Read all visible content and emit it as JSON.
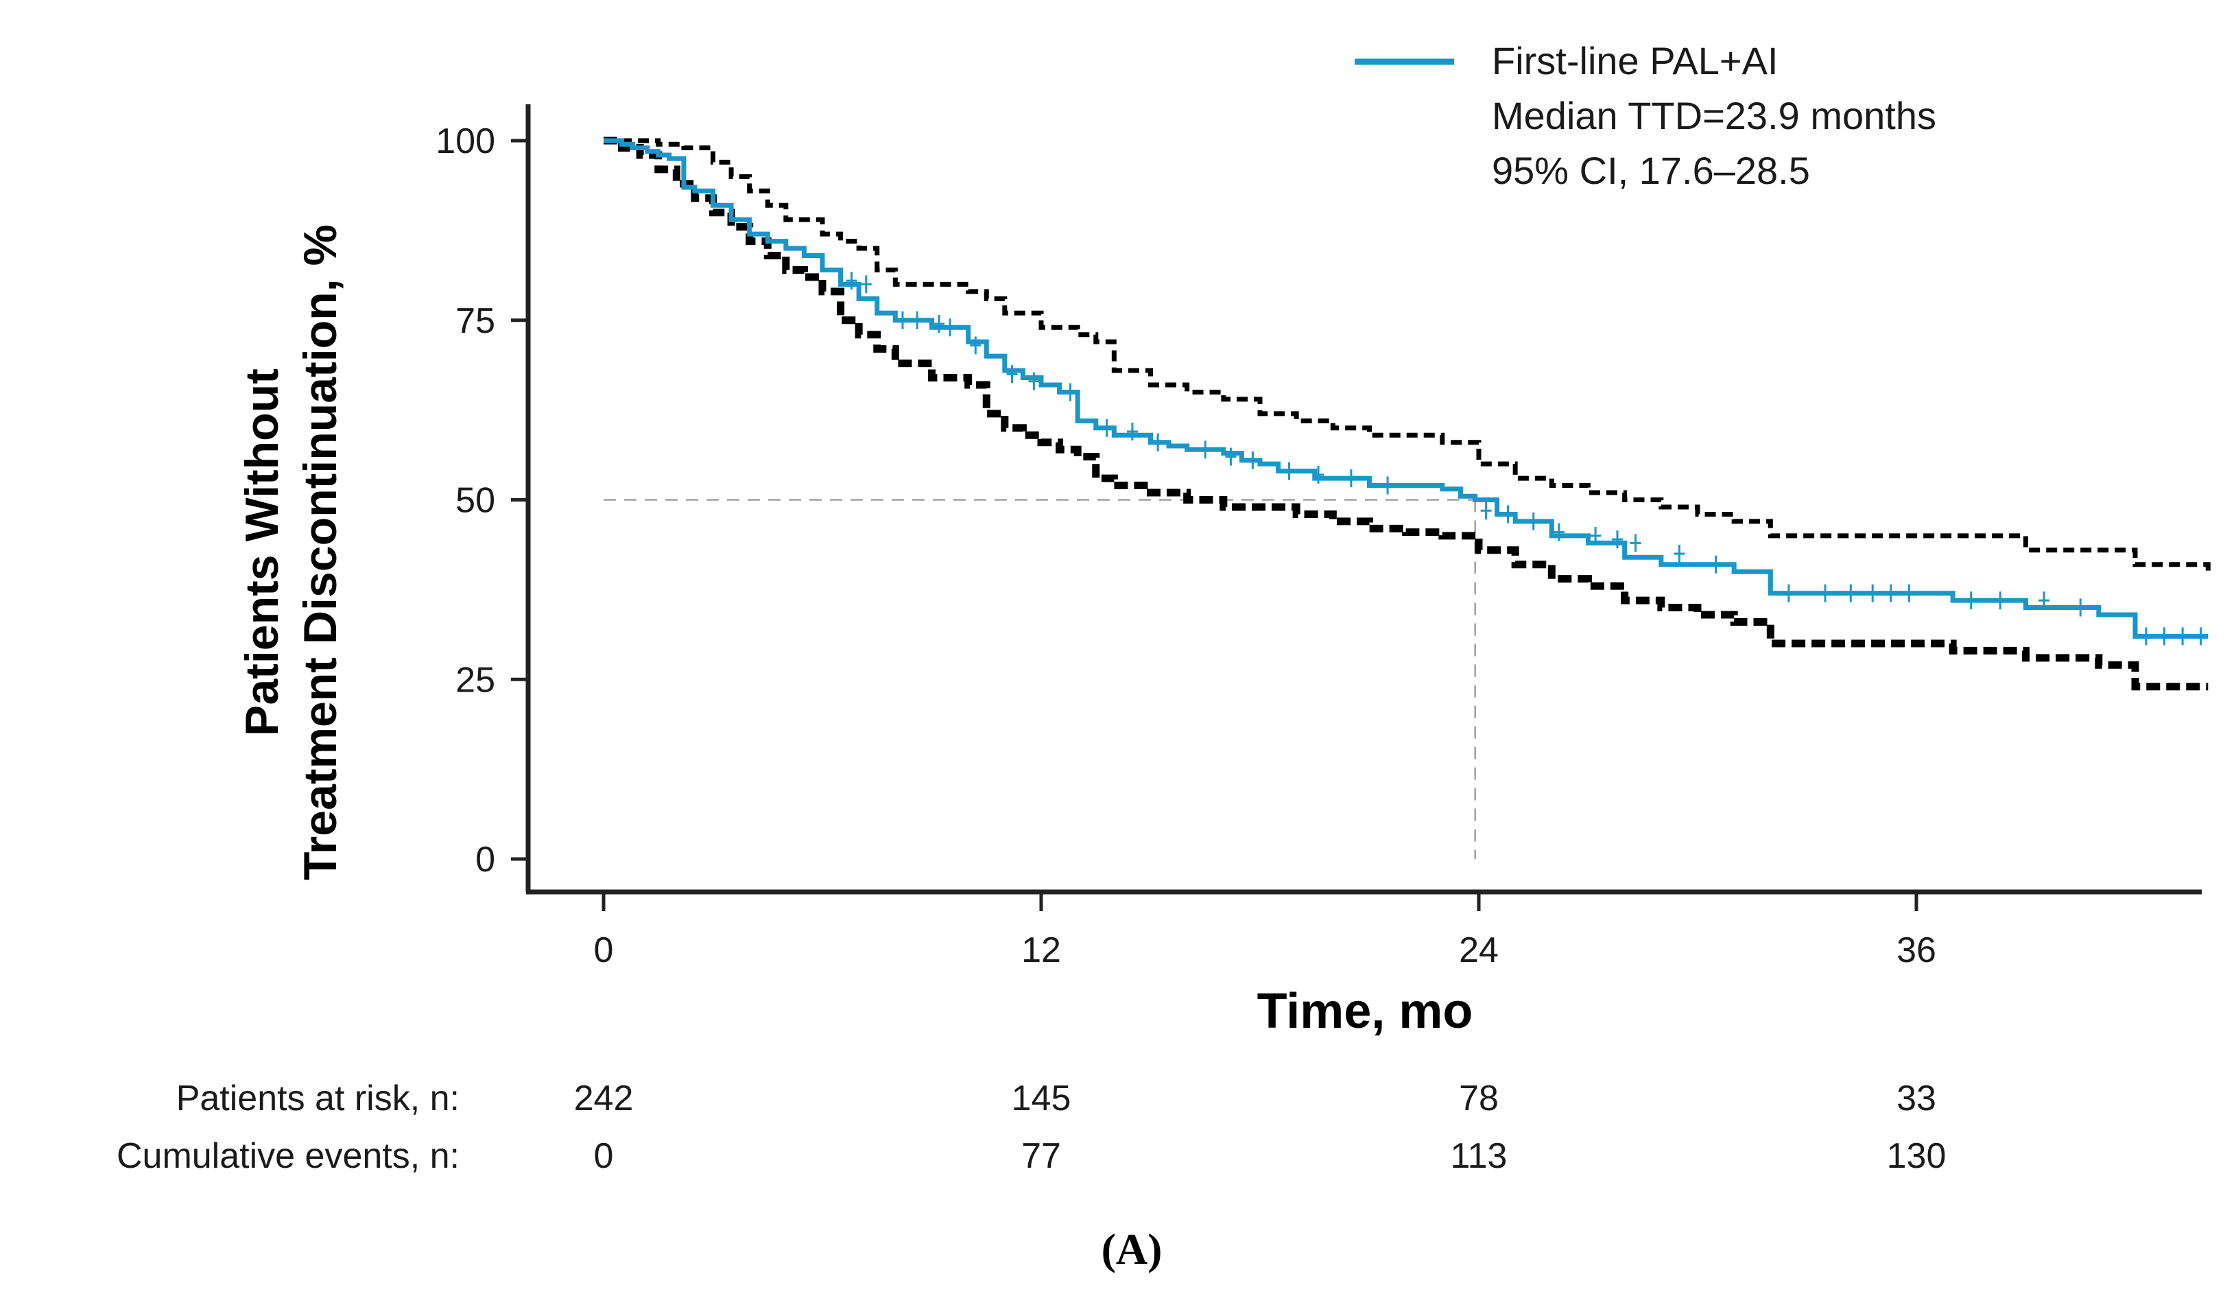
{
  "chart_data": {
    "type": "line",
    "chart_kind": "kaplan-meier",
    "xlabel": "Time, mo",
    "ylabel_line1": "Patients Without",
    "ylabel_line2": "Treatment Discontinuation, %",
    "xlim": [
      0,
      44
    ],
    "ylim": [
      0,
      100
    ],
    "x_ticks": [
      0,
      12,
      24,
      36
    ],
    "y_ticks": [
      0,
      25,
      50,
      75,
      100
    ],
    "grid": false,
    "legend_position": "top-right",
    "legend": {
      "series_label": "First-line PAL+AI",
      "median_text": "Median TTD=23.9 months",
      "ci_text": "95% CI, 17.6–28.5"
    },
    "median_reference": {
      "x": 23.9,
      "y": 50
    },
    "series": [
      {
        "name": "First-line PAL+AI",
        "role": "estimate",
        "color": "#1a96c8",
        "x": [
          0,
          0.5,
          0.8,
          1.2,
          1.5,
          1.8,
          2.2,
          2.5,
          3.0,
          3.5,
          4.0,
          4.5,
          5.0,
          5.5,
          6.0,
          6.5,
          7.0,
          7.5,
          8.0,
          8.5,
          9.0,
          10.0,
          10.5,
          11.0,
          11.5,
          12.0,
          12.5,
          13.0,
          13.5,
          14.0,
          15.0,
          15.5,
          16.0,
          17.0,
          17.5,
          18.0,
          18.5,
          19.0,
          19.5,
          20.0,
          21.0,
          22.0,
          23.0,
          23.5,
          23.9,
          24.5,
          25.0,
          26.0,
          26.5,
          27.0,
          28.0,
          29.0,
          30.0,
          31.0,
          31.8,
          32.0,
          33.0,
          35.0,
          37.0,
          39.0,
          40.0,
          41.0,
          41.8,
          42.0,
          44.0
        ],
        "y": [
          100,
          99.5,
          99,
          98.5,
          98,
          97.5,
          93.5,
          93,
          91,
          89,
          87,
          86,
          85,
          84,
          82,
          80,
          78,
          76,
          75,
          75,
          74,
          72,
          70,
          68,
          67,
          66,
          65,
          61,
          60,
          59,
          58,
          57.5,
          57,
          56.5,
          55.5,
          55,
          54,
          54,
          53,
          53,
          52,
          52,
          51.5,
          50.5,
          50,
          48,
          47,
          45,
          45,
          44,
          42,
          41,
          41,
          40,
          40,
          37,
          37,
          37,
          36,
          35,
          35,
          34,
          34,
          31,
          31
        ]
      },
      {
        "name": "",
        "role": "upper-ci",
        "color": "#000000",
        "x": [
          0,
          0.8,
          1.5,
          2.2,
          3.0,
          3.5,
          4.0,
          4.5,
          5.0,
          6.0,
          6.5,
          7.0,
          7.5,
          8.0,
          9.0,
          10.0,
          10.5,
          11.0,
          12.0,
          13.0,
          13.5,
          14.0,
          15.0,
          16.0,
          17.0,
          18.0,
          19.0,
          20.0,
          21.0,
          22.0,
          23.0,
          24.0,
          25.0,
          26.0,
          27.0,
          28.0,
          29.0,
          30.0,
          31.0,
          31.8,
          32.0,
          34.0,
          36.0,
          37.0,
          39.0,
          41.0,
          42.0,
          44.0
        ],
        "y": [
          100,
          100,
          99.5,
          99,
          97,
          95,
          93,
          91,
          89,
          87,
          86,
          85,
          82,
          80,
          80,
          79,
          78,
          76,
          74,
          73,
          72,
          68,
          66,
          65,
          64,
          62,
          61,
          60,
          59,
          59,
          58,
          55,
          53,
          52,
          51,
          50,
          49,
          48,
          47,
          47,
          45,
          45,
          45,
          45,
          43,
          43,
          41,
          40
        ]
      },
      {
        "name": "",
        "role": "lower-ci",
        "color": "#000000",
        "x": [
          0,
          0.5,
          1.0,
          1.5,
          2.0,
          2.5,
          3.0,
          3.5,
          4.0,
          4.5,
          5.0,
          5.5,
          6.0,
          6.5,
          7.0,
          7.5,
          8.0,
          9.0,
          10.0,
          10.5,
          11.0,
          11.5,
          12.0,
          12.5,
          13.0,
          13.5,
          14.0,
          15.0,
          16.0,
          17.0,
          18.0,
          19.0,
          20.0,
          21.0,
          22.0,
          23.0,
          24.0,
          25.0,
          26.0,
          27.0,
          28.0,
          29.0,
          30.0,
          31.0,
          31.8,
          32.0,
          34.0,
          36.0,
          37.0,
          39.0,
          41.0,
          42.0,
          44.0
        ],
        "y": [
          100,
          99,
          98,
          96,
          94,
          92,
          90,
          88,
          86,
          84,
          82,
          81,
          79,
          75,
          73,
          71,
          69,
          67,
          66,
          62,
          60,
          59,
          58,
          57,
          56,
          53,
          52,
          51,
          50,
          49,
          49,
          48,
          47,
          46,
          45.5,
          45,
          43,
          41,
          39,
          38,
          36,
          35,
          34,
          33,
          33,
          30,
          30,
          30,
          29,
          28,
          27,
          24,
          24
        ]
      }
    ],
    "censor_marks": {
      "series": "First-line PAL+AI",
      "x": [
        6.8,
        7.2,
        8.2,
        8.6,
        9.2,
        9.5,
        10.2,
        11.2,
        11.8,
        12.8,
        13.8,
        14.5,
        15.2,
        16.5,
        17.2,
        17.8,
        18.8,
        19.6,
        20.5,
        21.5,
        24.2,
        24.8,
        25.5,
        26.2,
        27.2,
        27.8,
        28.3,
        29.5,
        30.5,
        32.5,
        33.5,
        34.2,
        34.8,
        35.3,
        35.8,
        37.5,
        38.3,
        39.5,
        40.5,
        42.3,
        42.8,
        43.3,
        43.8
      ],
      "y": [
        80.5,
        80,
        75,
        75,
        74.5,
        74,
        71.5,
        67.5,
        66.5,
        65,
        60,
        59.5,
        58,
        57,
        56,
        55.5,
        54,
        53.5,
        53,
        52,
        48.5,
        48,
        47,
        45.5,
        45,
        44.5,
        44,
        42.5,
        41,
        37,
        37,
        37,
        37,
        37,
        37,
        36,
        36,
        36,
        35,
        31,
        31,
        31,
        31
      ]
    },
    "risk_table": {
      "times": [
        0,
        12,
        24,
        36
      ],
      "rows": [
        {
          "label": "Patients at risk, n:",
          "values": [
            "242",
            "145",
            "78",
            "33"
          ]
        },
        {
          "label": "Cumulative events, n:",
          "values": [
            "0",
            "77",
            "113",
            "130"
          ]
        }
      ]
    },
    "panel_label": "(A)"
  }
}
